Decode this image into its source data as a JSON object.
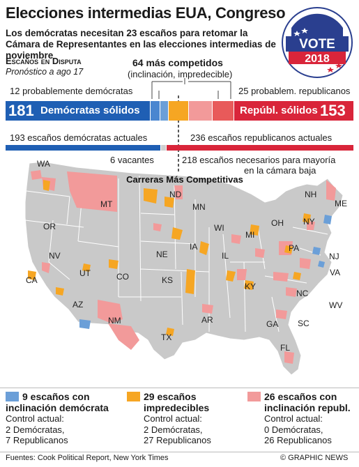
{
  "header": {
    "title": "Elecciones intermedias EUA, Congreso",
    "subtitle": "Los demócratas necesitan 23 escaños para retomar la Cámara de Representantes en las elecciones intermedias de noviembre",
    "badge_top": "VOTE",
    "badge_year": "2018"
  },
  "seats": {
    "section_title": "Escaños en Disputa",
    "section_sub": "Pronóstico a ago 17",
    "competitive_title": "64 más competidos",
    "competitive_sub": "(inclinación, impredecible)",
    "dem_likely": "12 probablemente demócratas",
    "rep_likely": "25 probablem. republicanos",
    "dem_solid_num": "181",
    "dem_solid_label": "Demócratas sólidos",
    "rep_solid_label": "Repúbl. sólidos",
    "rep_solid_num": "153",
    "dem_current": "193 escaños demócratas actuales",
    "rep_current": "236 escaños republicanos actuales",
    "vacant": "6 vacantes",
    "majority": "218 escaños necesarios para mayoría",
    "majority_2": "en la cámara baja"
  },
  "map": {
    "title": "Carreras Más Competitivas",
    "states": [
      "WA",
      "MT",
      "ND",
      "MN",
      "WI",
      "MI",
      "NY",
      "NH",
      "ME",
      "OR",
      "NV",
      "CA",
      "UT",
      "CO",
      "NE",
      "IA",
      "KS",
      "IL",
      "OH",
      "PA",
      "NJ",
      "VA",
      "KY",
      "NC",
      "WV",
      "AZ",
      "NM",
      "TX",
      "AR",
      "GA",
      "SC",
      "FL"
    ]
  },
  "legend": [
    {
      "head": "9 escaños con inclinación demócrata",
      "head_1": "9 escaños con",
      "head_2": "inclinación demócrata",
      "line1": "Control actual:",
      "line2": "2 Demócratas,",
      "line3": "7 Republicanos",
      "color": "#6b9fd8"
    },
    {
      "head_1": "29 escaños",
      "head_2": "impredecibles",
      "line1": "Control actual:",
      "line2": "2 Demócratas,",
      "line3": "27 Republicanos",
      "color": "#f6a623"
    },
    {
      "head_1": "26 escaños con",
      "head_2": "inclinación republ.",
      "line1": "Control actual:",
      "line2": "0 Demócratas,",
      "line3": "26 Republicanos",
      "color": "#f29a9a"
    }
  ],
  "footer": {
    "source": "Fuentes: Cook Political Report, New York Times",
    "credit": "© GRAPHIC NEWS"
  },
  "colors": {
    "dem_solid": "#1f5fb4",
    "dem_likely": "#4a86d0",
    "dem_lean": "#6b9fd8",
    "tossup": "#f6a623",
    "rep_lean": "#f29a9a",
    "rep_likely": "#e85a5a",
    "rep_solid": "#d9253a"
  }
}
